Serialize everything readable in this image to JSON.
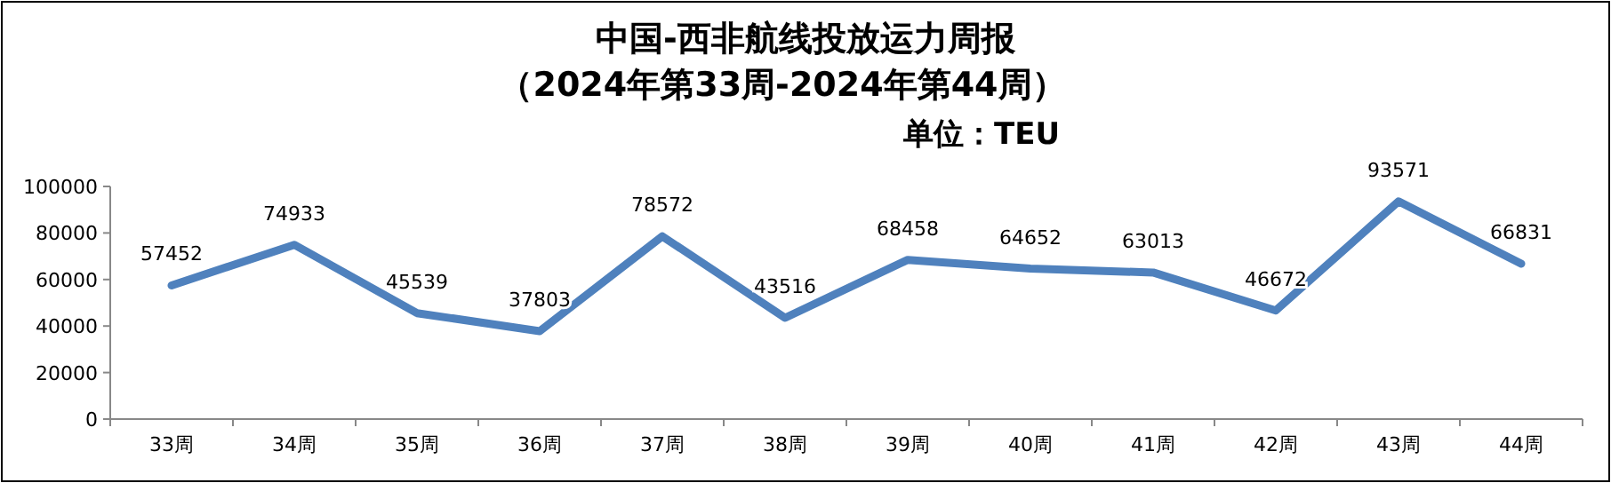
{
  "chart_data": {
    "type": "line",
    "title": "中国-西非航线投放运力周报",
    "subtitle": "（2024年第33周-2024年第44周）",
    "annotations": [
      "单位：TEU"
    ],
    "categories": [
      "33周",
      "34周",
      "35周",
      "36周",
      "37周",
      "38周",
      "39周",
      "40周",
      "41周",
      "42周",
      "43周",
      "44周"
    ],
    "series": [
      {
        "color": "#4f81bd",
        "values": [
          57452,
          74933,
          45539,
          37803,
          78572,
          43516,
          68458,
          64652,
          63013,
          46672,
          93571,
          66831
        ]
      }
    ],
    "ylim": [
      0,
      100000
    ],
    "yticks": [
      0,
      20000,
      40000,
      60000,
      80000,
      100000
    ],
    "grid": false,
    "data_labels": true,
    "marker": "none",
    "line_style": "solid"
  }
}
